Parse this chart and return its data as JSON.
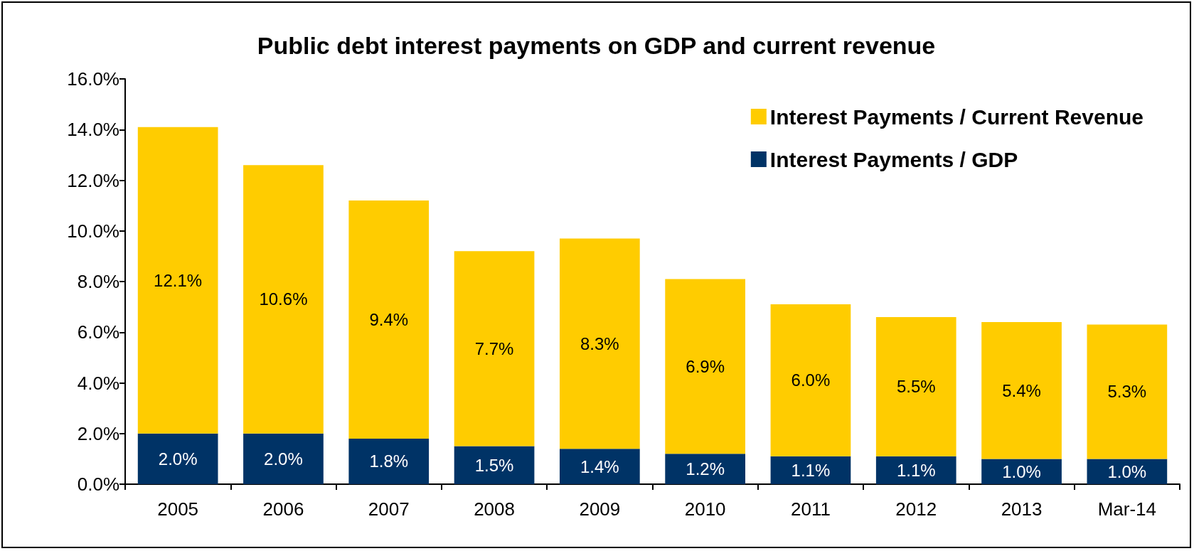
{
  "chart_data": {
    "type": "bar",
    "title": "Public debt interest payments on GDP and current revenue",
    "stacked": true,
    "legend": "top right",
    "grid": false,
    "categories": [
      "2005",
      "2006",
      "2007",
      "2008",
      "2009",
      "2010",
      "2011",
      "2012",
      "2013",
      "Mar-14"
    ],
    "ylim": [
      0,
      16
    ],
    "yticks": [
      {
        "value": 0,
        "label": "0.0%"
      },
      {
        "value": 2,
        "label": "2.0%"
      },
      {
        "value": 4,
        "label": "4.0%"
      },
      {
        "value": 6,
        "label": "6.0%"
      },
      {
        "value": 8,
        "label": "8.0%"
      },
      {
        "value": 10,
        "label": "10.0%"
      },
      {
        "value": 12,
        "label": "12.0%"
      },
      {
        "value": 14,
        "label": "14.0%"
      },
      {
        "value": 16,
        "label": "16.0%"
      }
    ],
    "series": [
      {
        "name": "Interest Payments / GDP",
        "color": "#003366",
        "values": [
          2.0,
          2.0,
          1.8,
          1.5,
          1.4,
          1.2,
          1.1,
          1.1,
          1.0,
          1.0
        ],
        "value_labels": [
          "2.0%",
          "2.0%",
          "1.8%",
          "1.5%",
          "1.4%",
          "1.2%",
          "1.1%",
          "1.1%",
          "1.0%",
          "1.0%"
        ]
      },
      {
        "name": "Interest Payments / Current Revenue",
        "color": "#ffcc00",
        "values": [
          12.1,
          10.6,
          9.4,
          7.7,
          8.3,
          6.9,
          6.0,
          5.5,
          5.4,
          5.3
        ],
        "value_labels": [
          "12.1%",
          "10.6%",
          "9.4%",
          "7.7%",
          "8.3%",
          "6.9%",
          "6.0%",
          "5.5%",
          "5.4%",
          "5.3%"
        ]
      }
    ]
  }
}
